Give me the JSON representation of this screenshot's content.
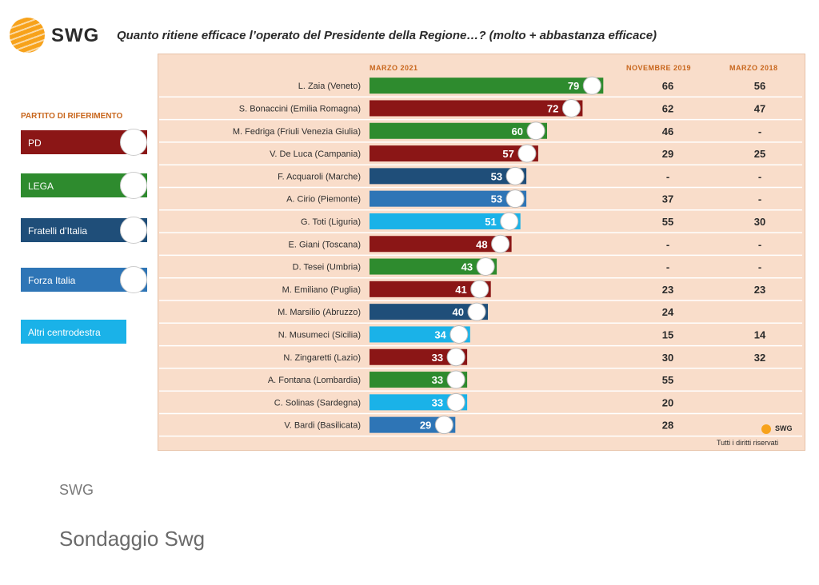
{
  "header": {
    "brand": "SWG",
    "question": "Quanto ritiene efficace l’operato del Presidente della Regione…? (molto + abbastanza efficace)"
  },
  "legend": {
    "title": "PARTITO DI RIFERIMENTO",
    "items": [
      {
        "label": "PD",
        "color": "#8b1616"
      },
      {
        "label": "LEGA",
        "color": "#2e8b2e"
      },
      {
        "label": "Fratelli d’Italia",
        "color": "#1f4e79"
      },
      {
        "label": "Forza Italia",
        "color": "#2e75b6"
      },
      {
        "label": "Altri centrodestra",
        "color": "#1ab2e8"
      }
    ]
  },
  "columns": {
    "marzo_2021": "MARZO 2021",
    "novembre_2019": "NOVEMBRE 2019",
    "marzo_2018": "MARZO 2018"
  },
  "colors": {
    "PD": "#8b1616",
    "LEGA": "#2e8b2e",
    "FDI": "#1f4e79",
    "FI": "#2e75b6",
    "ALTRI": "#1ab2e8",
    "panel": "#f9ddca",
    "grid": "#ffffff"
  },
  "chart_data": {
    "type": "bar",
    "title": "Quanto ritiene efficace l’operato del Presidente della Regione…? (molto + abbastanza efficace)",
    "orientation": "horizontal",
    "categories": [
      "L. Zaia (Veneto)",
      "S. Bonaccini (Emilia Romagna)",
      "M. Fedriga (Friuli Venezia Giulia)",
      "V. De Luca (Campania)",
      "F. Acquaroli (Marche)",
      "A. Cirio (Piemonte)",
      "G. Toti (Liguria)",
      "E. Giani (Toscana)",
      "D. Tesei (Umbria)",
      "M. Emiliano (Puglia)",
      "M. Marsilio (Abruzzo)",
      "N. Musumeci (Sicilia)",
      "N. Zingaretti (Lazio)",
      "A. Fontana (Lombardia)",
      "C. Solinas (Sardegna)",
      "V. Bardi (Basilicata)"
    ],
    "party": [
      "LEGA",
      "PD",
      "LEGA",
      "PD",
      "FDI",
      "FI",
      "ALTRI",
      "PD",
      "LEGA",
      "PD",
      "FDI",
      "ALTRI",
      "PD",
      "LEGA",
      "ALTRI",
      "FI"
    ],
    "series": [
      {
        "name": "MARZO 2021",
        "values": [
          79,
          72,
          60,
          57,
          53,
          53,
          51,
          48,
          43,
          41,
          40,
          34,
          33,
          33,
          33,
          29
        ]
      },
      {
        "name": "NOVEMBRE 2019",
        "values": [
          "66",
          "62",
          "46",
          "29",
          "-",
          "37",
          "55",
          "-",
          "-",
          "23",
          "24",
          "15",
          "30",
          "55",
          "20",
          "28"
        ]
      },
      {
        "name": "MARZO 2018",
        "values": [
          "56",
          "47",
          "-",
          "25",
          "-",
          "-",
          "30",
          "-",
          "-",
          "23",
          "",
          "14",
          "32",
          "",
          "",
          ""
        ]
      }
    ],
    "xlim": [
      0,
      100
    ]
  },
  "footer": {
    "small_brand": "SWG",
    "rights": "Tutti i diritti riservati",
    "source": "SWG",
    "caption": "Sondaggio Swg"
  }
}
